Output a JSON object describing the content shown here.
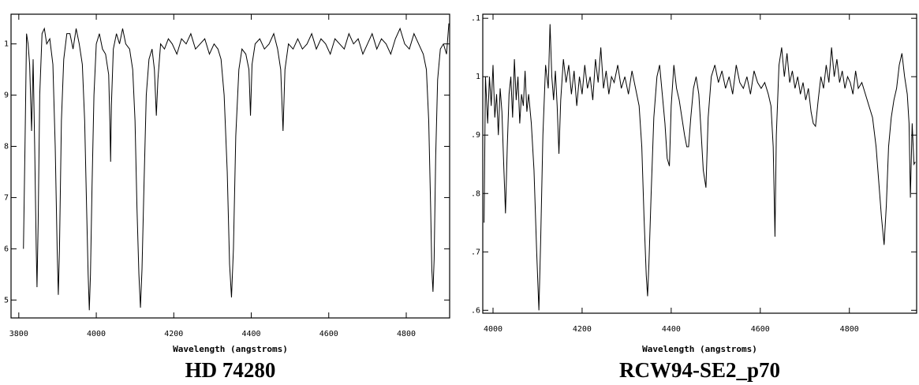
{
  "chart_data": [
    {
      "type": "line",
      "title": "HD 74280",
      "x_label": "Wavelength (angstroms)",
      "color": "#000000",
      "grid": false,
      "xlim": [
        3780,
        4912
      ],
      "xticks": [
        3800,
        4000,
        4200,
        4400,
        4600,
        4800
      ],
      "ylim": [
        0.465,
        1.058
      ],
      "yticks": [
        {
          "value": 0.5,
          "label": "5"
        },
        {
          "value": 0.6,
          "label": "6"
        },
        {
          "value": 0.7,
          "label": "7"
        },
        {
          "value": 0.8,
          "label": "8"
        },
        {
          "value": 0.9,
          "label": "9"
        },
        1
      ],
      "x": [
        3812,
        3816,
        3820,
        3824,
        3828,
        3833,
        3837,
        3841,
        3845,
        3847,
        3850,
        3854,
        3860,
        3866,
        3872,
        3880,
        3888,
        3894,
        3899,
        3902,
        3905,
        3910,
        3916,
        3924,
        3932,
        3940,
        3948,
        3956,
        3964,
        3970,
        3975,
        3979,
        3982,
        3985,
        3989,
        3994,
        4000,
        4008,
        4016,
        4024,
        4032,
        4035,
        4037,
        4039,
        4044,
        4052,
        4060,
        4068,
        4076,
        4086,
        4094,
        4100,
        4105,
        4110,
        4114,
        4118,
        4123,
        4129,
        4136,
        4144,
        4150,
        4155,
        4159,
        4166,
        4176,
        4186,
        4196,
        4208,
        4220,
        4232,
        4244,
        4256,
        4268,
        4280,
        4292,
        4304,
        4314,
        4322,
        4330,
        4338,
        4344,
        4349,
        4354,
        4360,
        4368,
        4376,
        4386,
        4394,
        4398,
        4402,
        4410,
        4422,
        4434,
        4446,
        4458,
        4468,
        4476,
        4482,
        4487,
        4496,
        4508,
        4520,
        4532,
        4544,
        4556,
        4568,
        4580,
        4592,
        4604,
        4616,
        4628,
        4640,
        4652,
        4664,
        4676,
        4688,
        4700,
        4712,
        4724,
        4736,
        4748,
        4760,
        4772,
        4784,
        4796,
        4808,
        4820,
        4832,
        4844,
        4852,
        4858,
        4863,
        4866,
        4869,
        4872,
        4876,
        4881,
        4888,
        4896,
        4904,
        4910
      ],
      "values": [
        0.6,
        0.8,
        1.02,
        1.0,
        0.96,
        0.83,
        0.97,
        0.8,
        0.6,
        0.525,
        0.65,
        0.9,
        1.02,
        1.03,
        1.0,
        1.01,
        0.96,
        0.8,
        0.6,
        0.51,
        0.6,
        0.85,
        0.97,
        1.02,
        1.02,
        0.99,
        1.03,
        1.0,
        0.96,
        0.85,
        0.68,
        0.55,
        0.48,
        0.55,
        0.72,
        0.9,
        1.0,
        1.02,
        0.99,
        0.98,
        0.94,
        0.85,
        0.77,
        0.88,
        0.99,
        1.02,
        1.0,
        1.03,
        1.0,
        0.99,
        0.95,
        0.85,
        0.68,
        0.55,
        0.485,
        0.56,
        0.72,
        0.9,
        0.97,
        0.99,
        0.95,
        0.86,
        0.93,
        1.0,
        0.99,
        1.01,
        1.0,
        0.98,
        1.01,
        1.0,
        1.02,
        0.99,
        1.0,
        1.01,
        0.98,
        1.0,
        0.99,
        0.97,
        0.9,
        0.75,
        0.57,
        0.505,
        0.6,
        0.82,
        0.95,
        0.99,
        0.98,
        0.95,
        0.86,
        0.96,
        1.0,
        1.01,
        0.99,
        1.0,
        1.02,
        0.99,
        0.95,
        0.83,
        0.95,
        1.0,
        0.99,
        1.01,
        0.99,
        1.0,
        1.02,
        0.99,
        1.01,
        1.0,
        0.98,
        1.01,
        1.0,
        0.99,
        1.02,
        1.0,
        1.01,
        0.98,
        1.0,
        1.02,
        0.99,
        1.01,
        1.0,
        0.98,
        1.01,
        1.03,
        1.0,
        0.99,
        1.02,
        1.0,
        0.98,
        0.95,
        0.85,
        0.68,
        0.56,
        0.516,
        0.58,
        0.78,
        0.93,
        0.99,
        1.0,
        0.98,
        1.04
      ]
    },
    {
      "type": "line",
      "title": "RCW94-SE2_p70",
      "x_label": "Wavelength (angstroms)",
      "color": "#000000",
      "grid": false,
      "xlim": [
        3977,
        4951
      ],
      "xticks": [
        4000,
        4200,
        4400,
        4600,
        4800
      ],
      "ylim": [
        0.595,
        1.107
      ],
      "yticks": [
        {
          "value": 0.6,
          "label": ".6"
        },
        {
          "value": 0.7,
          "label": ".7"
        },
        {
          "value": 0.8,
          "label": ".8"
        },
        {
          "value": 0.9,
          "label": ".9"
        },
        1,
        {
          "value": 1.1,
          "label": ".1"
        }
      ],
      "x": [
        3980,
        3983,
        3988,
        3992,
        3996,
        4000,
        4004,
        4008,
        4012,
        4016,
        4020,
        4024,
        4028,
        4032,
        4036,
        4040,
        4044,
        4048,
        4052,
        4056,
        4060,
        4064,
        4068,
        4072,
        4076,
        4080,
        4086,
        4092,
        4098,
        4103,
        4107,
        4112,
        4118,
        4124,
        4128,
        4132,
        4136,
        4140,
        4144,
        4148,
        4152,
        4158,
        4164,
        4170,
        4176,
        4182,
        4188,
        4194,
        4200,
        4206,
        4212,
        4218,
        4224,
        4230,
        4236,
        4242,
        4248,
        4254,
        4260,
        4266,
        4272,
        4280,
        4288,
        4296,
        4304,
        4312,
        4320,
        4328,
        4334,
        4339,
        4344,
        4347,
        4350,
        4355,
        4361,
        4368,
        4374,
        4380,
        4386,
        4391,
        4396,
        4400,
        4406,
        4412,
        4418,
        4424,
        4430,
        4435,
        4439,
        4444,
        4450,
        4456,
        4462,
        4466,
        4472,
        4478,
        4483,
        4490,
        4498,
        4506,
        4514,
        4522,
        4530,
        4538,
        4546,
        4554,
        4562,
        4570,
        4578,
        4586,
        4594,
        4602,
        4610,
        4618,
        4624,
        4629,
        4633,
        4636,
        4642,
        4648,
        4654,
        4660,
        4666,
        4672,
        4678,
        4684,
        4690,
        4696,
        4702,
        4708,
        4714,
        4719,
        4724,
        4730,
        4736,
        4742,
        4748,
        4754,
        4760,
        4766,
        4772,
        4778,
        4784,
        4790,
        4796,
        4802,
        4808,
        4814,
        4820,
        4828,
        4836,
        4844,
        4852,
        4860,
        4866,
        4872,
        4878,
        4883,
        4888,
        4894,
        4900,
        4906,
        4912,
        4918,
        4924,
        4930,
        4934,
        4937,
        4941,
        4945,
        4948
      ],
      "values": [
        0.75,
        1.0,
        0.92,
        1.0,
        0.95,
        1.02,
        0.93,
        0.97,
        0.9,
        0.98,
        0.94,
        0.85,
        0.766,
        0.88,
        0.97,
        1.0,
        0.93,
        1.03,
        0.96,
        1.0,
        0.92,
        0.97,
        0.95,
        1.01,
        0.94,
        0.97,
        0.92,
        0.84,
        0.7,
        0.6,
        0.72,
        0.9,
        1.02,
        0.98,
        1.09,
        1.0,
        0.96,
        1.01,
        0.95,
        0.868,
        0.96,
        1.03,
        0.99,
        1.02,
        0.97,
        1.01,
        0.95,
        1.0,
        0.97,
        1.02,
        0.98,
        1.0,
        0.96,
        1.03,
        0.99,
        1.05,
        0.98,
        1.01,
        0.97,
        1.0,
        0.99,
        1.02,
        0.98,
        1.0,
        0.97,
        1.01,
        0.98,
        0.95,
        0.88,
        0.76,
        0.66,
        0.624,
        0.68,
        0.8,
        0.93,
        1.0,
        1.02,
        0.97,
        0.92,
        0.86,
        0.847,
        0.95,
        1.02,
        0.98,
        0.96,
        0.93,
        0.9,
        0.88,
        0.88,
        0.93,
        0.98,
        1.0,
        0.97,
        0.92,
        0.84,
        0.81,
        0.93,
        1.0,
        1.02,
        0.99,
        1.01,
        0.98,
        1.0,
        0.97,
        1.02,
        0.99,
        0.98,
        1.0,
        0.97,
        1.01,
        0.99,
        0.98,
        0.99,
        0.97,
        0.95,
        0.88,
        0.726,
        0.9,
        1.02,
        1.05,
        1.0,
        1.04,
        0.99,
        1.01,
        0.98,
        1.0,
        0.97,
        0.99,
        0.96,
        0.98,
        0.94,
        0.92,
        0.915,
        0.96,
        1.0,
        0.98,
        1.02,
        0.99,
        1.05,
        1.0,
        1.03,
        0.99,
        1.01,
        0.98,
        1.0,
        0.99,
        0.97,
        1.01,
        0.98,
        0.99,
        0.97,
        0.95,
        0.93,
        0.88,
        0.82,
        0.76,
        0.712,
        0.78,
        0.88,
        0.93,
        0.96,
        0.98,
        1.02,
        1.04,
        1.0,
        0.97,
        0.92,
        0.793,
        0.92,
        0.85,
        0.854
      ]
    }
  ]
}
